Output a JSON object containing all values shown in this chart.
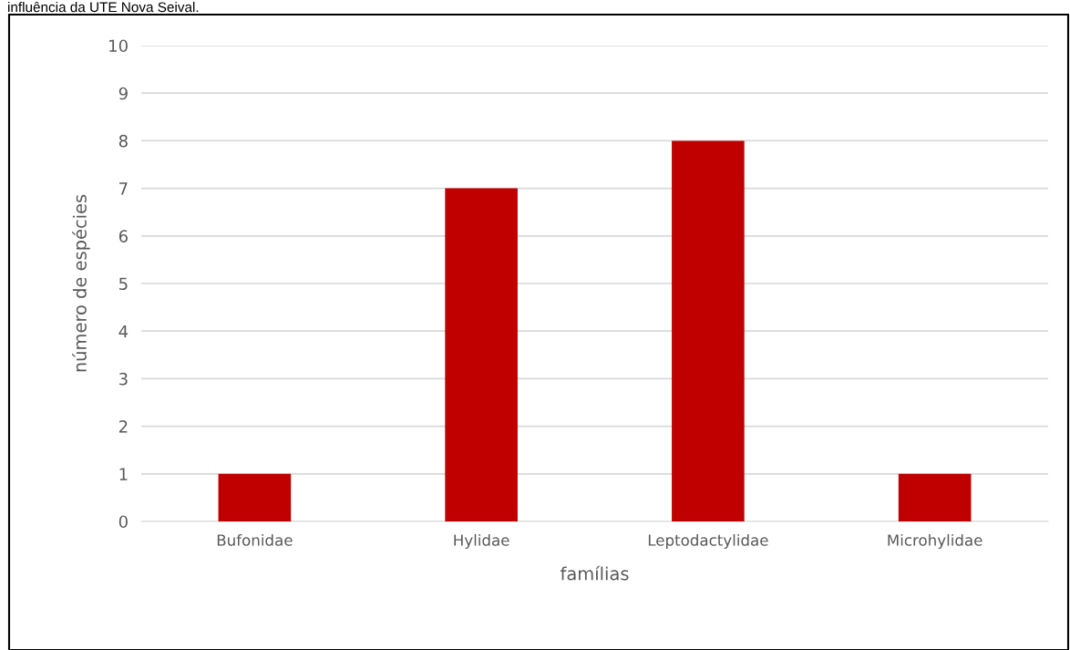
{
  "chart_data": {
    "type": "bar",
    "xlabel": "famílias",
    "ylabel": "número de espécies",
    "categories": [
      "Bufonidae",
      "Hylidae",
      "Leptodactylidae",
      "Microhylidae"
    ],
    "values": [
      1,
      7,
      8,
      1
    ],
    "color": "#c00000",
    "ylim": [
      0,
      10
    ],
    "yticks": [
      0,
      1,
      2,
      3,
      4,
      5,
      6,
      7,
      8,
      9,
      10
    ],
    "grid": "y",
    "annotations": [
      "influência da UTE Nova Seival."
    ]
  }
}
